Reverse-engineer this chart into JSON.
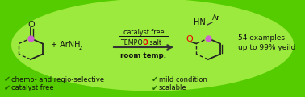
{
  "bg_color_outer": "#55cc00",
  "bg_color_inner": "#ccff66",
  "text_color": "#111111",
  "pink_color": "#cc66cc",
  "red_color": "#ee0000",
  "arrow_color": "#333333",
  "label1": "catalyst free",
  "label2": "TEMPO",
  "label2b": "O",
  "label2c": " salt",
  "label3": "room temp.",
  "plus_text": "+ ArNH",
  "plus_sub": "2",
  "hn_text": "HN",
  "ar_text": "Ar",
  "examples_text": "54 examples",
  "yield_text": "up to 99% yeild",
  "bottom1": "chemo- and regio-selective",
  "bottom2": "catalyst free",
  "bottom3": "mild condition",
  "bottom4": "scalable",
  "check_color": "#226600",
  "dark_color": "#222222",
  "line_color": "#333333"
}
